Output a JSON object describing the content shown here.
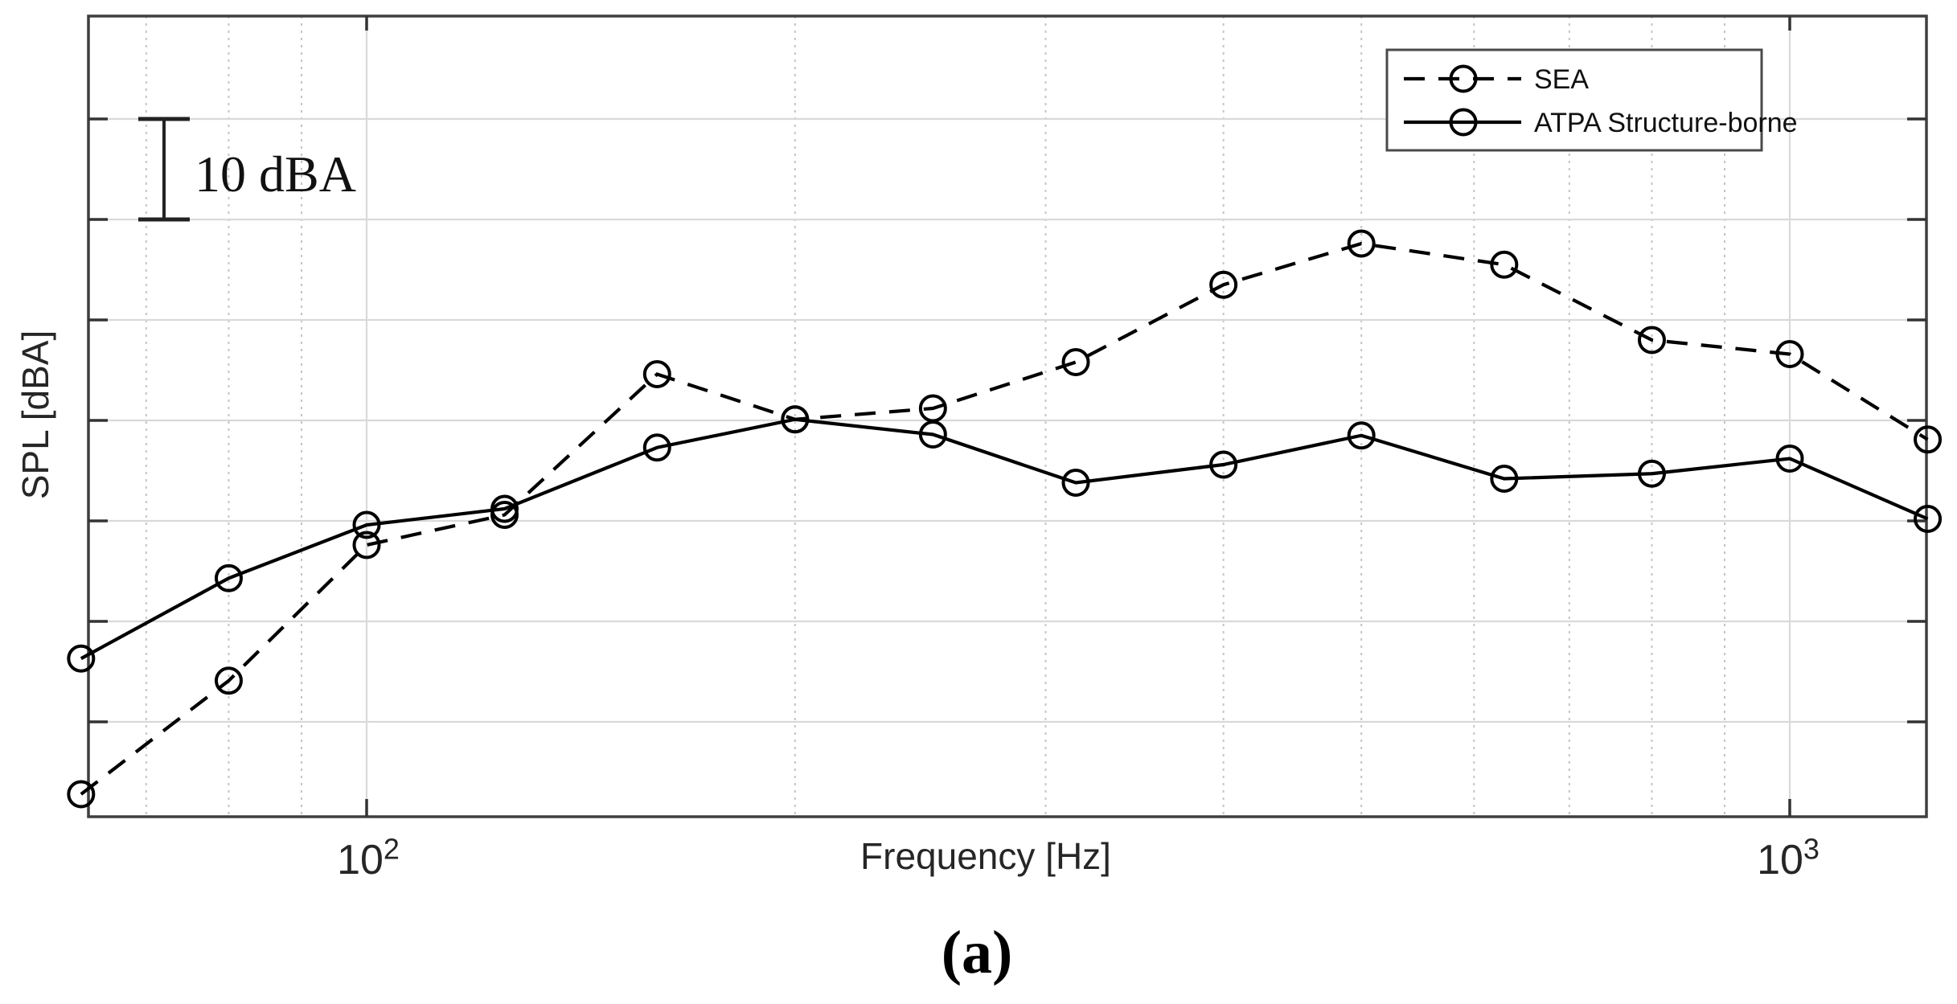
{
  "figure": {
    "caption": "(a)",
    "scale_bar": {
      "label": "10 dBA"
    },
    "x_axis": {
      "label": "Frequency [Hz]",
      "ticks": [
        {
          "base": "10",
          "exp": "2"
        },
        {
          "base": "10",
          "exp": "3"
        }
      ]
    },
    "y_axis": {
      "label": "SPL [dBA]",
      "tick_labels_visible": false
    }
  },
  "colors": {
    "series": "#000000",
    "spine": "#3f3f3f",
    "grid_major": "#d9d9d9",
    "grid_minor": "#c4c4c4",
    "tick": "#333333",
    "scale_bar": "#222222",
    "legend_border": "#4a4a4a",
    "background": "#ffffff"
  },
  "chart_data": {
    "type": "line",
    "title": "",
    "xlabel": "Frequency [Hz]",
    "ylabel": "SPL [dBA]",
    "x_scale": "log",
    "x": [
      63,
      80,
      100,
      125,
      160,
      200,
      250,
      315,
      400,
      500,
      630,
      800,
      1000,
      1250
    ],
    "series": [
      {
        "name": "SEA",
        "line_style": "dashed",
        "marker": "circle",
        "values": [
          2.8,
          14.1,
          27.6,
          30.6,
          44.6,
          40.1,
          41.2,
          45.8,
          53.5,
          57.6,
          55.5,
          48.0,
          46.6,
          38.1
        ]
      },
      {
        "name": "ATPA Structure-borne",
        "line_style": "solid",
        "marker": "circle",
        "values": [
          16.3,
          24.3,
          29.6,
          31.2,
          37.3,
          40.1,
          38.6,
          33.8,
          35.6,
          38.5,
          34.2,
          34.7,
          36.2,
          30.2
        ]
      }
    ],
    "y_values_note": "relative dBA, unlabeled axis; scale bar on plot indicates 10 dBA span",
    "xlim": [
      63,
      1260
    ],
    "ylim": [
      0.5,
      80.4
    ],
    "x_major_gridlines": [
      100,
      1000
    ],
    "x_minor_gridlines": [
      70,
      80,
      90,
      200,
      300,
      400,
      500,
      600,
      700,
      800,
      900
    ],
    "y_gridline_step": 10,
    "y_gridlines": [
      10,
      20,
      30,
      40,
      50,
      60,
      70
    ],
    "grid": true,
    "legend_position": "top-right"
  }
}
